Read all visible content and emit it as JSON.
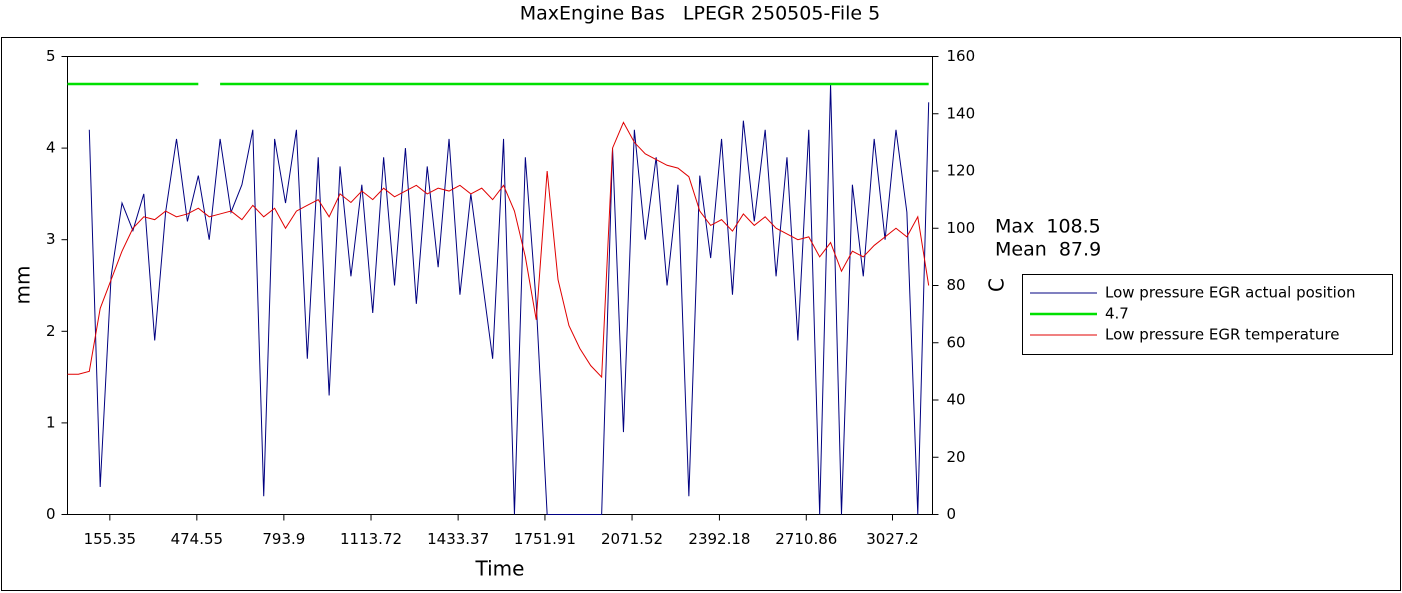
{
  "chart_data": {
    "type": "line",
    "title": "MaxEngine Bas   LPEGR 250505-File 5",
    "xlabel": "Time",
    "ylabel": "mm",
    "y2label": "C",
    "annotations": [
      "Max  108.5",
      "Mean  87.9"
    ],
    "x": [
      0,
      40,
      80,
      120,
      160,
      200,
      240,
      280,
      320,
      360,
      400,
      440,
      480,
      520,
      560,
      600,
      640,
      680,
      720,
      760,
      800,
      840,
      880,
      920,
      960,
      1000,
      1040,
      1080,
      1120,
      1160,
      1200,
      1240,
      1280,
      1320,
      1360,
      1400,
      1440,
      1480,
      1520,
      1560,
      1600,
      1640,
      1680,
      1720,
      1760,
      1800,
      1840,
      1880,
      1920,
      1960,
      2000,
      2040,
      2080,
      2120,
      2160,
      2200,
      2240,
      2280,
      2320,
      2360,
      2400,
      2440,
      2480,
      2520,
      2560,
      2600,
      2640,
      2680,
      2720,
      2760,
      2800,
      2840,
      2880,
      2920,
      2960,
      3000,
      3040,
      3080,
      3120,
      3160
    ],
    "xlim": [
      0,
      3174
    ],
    "xticks": [
      155.35,
      474.55,
      793.9,
      1113.72,
      1433.37,
      1751.91,
      2071.52,
      2392.18,
      2710.86,
      3027.2
    ],
    "ylim": [
      0,
      5
    ],
    "yticks": [
      0,
      1,
      2,
      3,
      4,
      5
    ],
    "y2lim": [
      0,
      160
    ],
    "y2ticks": [
      0,
      20,
      40,
      60,
      80,
      100,
      120,
      140,
      160
    ],
    "series": [
      {
        "name": "Low pressure EGR actual position",
        "color": "#000080",
        "values": [
          null,
          null,
          4.2,
          0.3,
          2.6,
          3.4,
          3.1,
          3.5,
          1.9,
          3.3,
          4.1,
          3.2,
          3.7,
          3.0,
          4.1,
          3.3,
          3.6,
          4.2,
          0.2,
          4.1,
          3.4,
          4.2,
          1.7,
          3.9,
          1.3,
          3.8,
          2.6,
          3.6,
          2.2,
          3.9,
          2.5,
          4.0,
          2.3,
          3.8,
          2.7,
          4.1,
          2.4,
          3.5,
          2.6,
          1.7,
          4.1,
          0.0,
          3.9,
          2.3,
          0.0,
          0.0,
          0.0,
          0.0,
          0.0,
          0.0,
          4.0,
          0.9,
          4.2,
          3.0,
          3.9,
          2.5,
          3.6,
          0.2,
          3.7,
          2.8,
          4.1,
          2.4,
          4.3,
          3.2,
          4.2,
          2.6,
          3.9,
          1.9,
          4.2,
          0.0,
          4.7,
          0.0,
          3.6,
          2.6,
          4.1,
          3.0,
          4.2,
          3.3,
          0.0,
          4.5
        ]
      },
      {
        "name": "4.7",
        "color": "#00e000",
        "values": [
          4.7,
          4.7,
          4.7,
          4.7,
          4.7,
          4.7,
          4.7,
          4.7,
          4.7,
          4.7,
          4.7,
          4.7,
          4.7,
          null,
          4.7,
          4.7,
          4.7,
          4.7,
          4.7,
          4.7,
          4.7,
          4.7,
          4.7,
          4.7,
          4.7,
          4.7,
          4.7,
          4.7,
          4.7,
          4.7,
          4.7,
          4.7,
          4.7,
          4.7,
          4.7,
          4.7,
          4.7,
          4.7,
          4.7,
          4.7,
          4.7,
          4.7,
          4.7,
          4.7,
          4.7,
          4.7,
          4.7,
          4.7,
          4.7,
          4.7,
          4.7,
          4.7,
          4.7,
          4.7,
          4.7,
          4.7,
          4.7,
          4.7,
          4.7,
          4.7,
          4.7,
          4.7,
          4.7,
          4.7,
          4.7,
          4.7,
          4.7,
          4.7,
          4.7,
          4.7,
          4.7,
          4.7,
          4.7,
          4.7,
          4.7,
          4.7,
          4.7,
          4.7,
          4.7,
          4.7
        ]
      },
      {
        "name": "Low pressure EGR temperature",
        "color": "#e00000",
        "axis": "y2",
        "values": [
          49,
          49,
          50,
          72,
          82,
          92,
          100,
          104,
          103,
          106,
          104,
          105,
          107,
          104,
          105,
          106,
          103,
          108,
          104,
          107,
          100,
          106,
          108,
          110,
          104,
          112,
          109,
          113,
          110,
          114,
          111,
          113,
          115,
          112,
          114,
          113,
          115,
          112,
          114,
          110,
          115,
          106,
          90,
          68,
          120,
          82,
          66,
          58,
          52,
          48,
          128,
          137,
          130,
          126,
          124,
          122,
          121,
          118,
          106,
          101,
          103,
          99,
          105,
          101,
          104,
          100,
          98,
          96,
          97,
          90,
          95,
          85,
          92,
          90,
          94,
          97,
          100,
          97,
          104,
          80
        ]
      }
    ]
  }
}
